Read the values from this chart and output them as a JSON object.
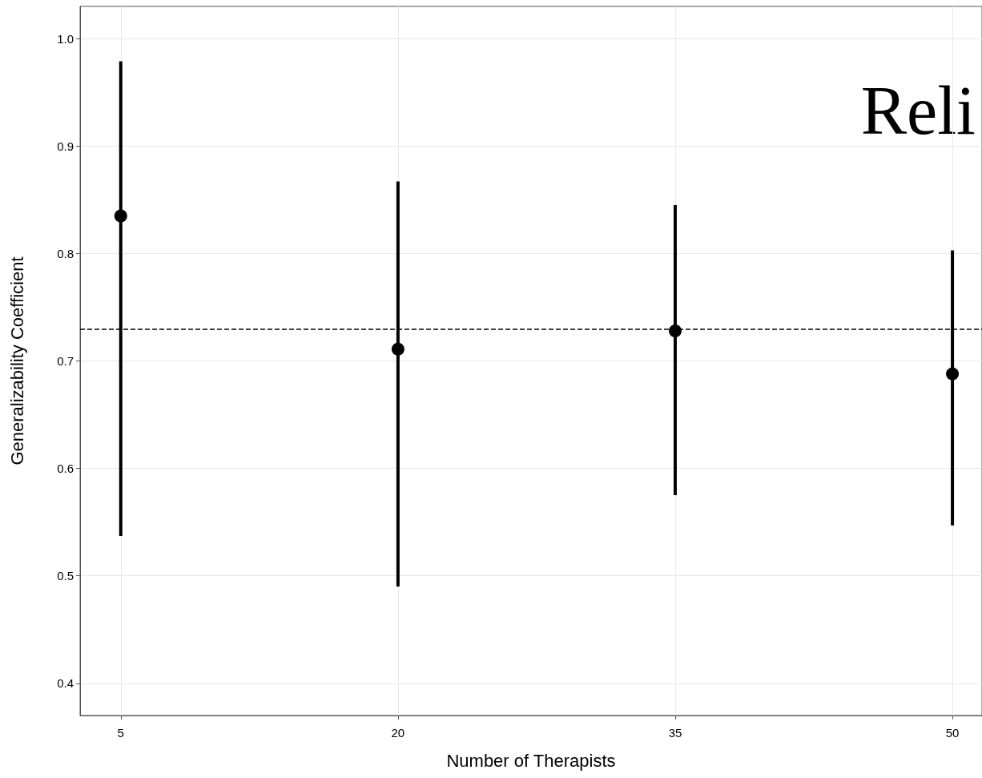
{
  "chart_data": {
    "type": "scatter",
    "xlabel": "Number of Therapists",
    "ylabel": "Generalizability Coefficient",
    "x": [
      5,
      20,
      35,
      50
    ],
    "series": [
      {
        "color": "#000000",
        "values": [
          0.835,
          0.711,
          0.728,
          0.688
        ],
        "errors": [
          [
            0.537,
            0.979
          ],
          [
            0.49,
            0.867
          ],
          [
            0.575,
            0.845
          ],
          [
            0.547,
            0.803
          ]
        ]
      }
    ],
    "marker": "circle",
    "xlim": [
      2.8,
      51.6
    ],
    "xticks": [
      5,
      20,
      35,
      50
    ],
    "ylim": [
      0.37,
      1.03
    ],
    "yticks": [
      0.4,
      0.5,
      0.6,
      0.7,
      0.8,
      0.9,
      {
        "value": 1,
        "label": "1.0"
      }
    ],
    "ref_lines": [
      {
        "axis": "y",
        "value": 0.73,
        "color": "#000000",
        "line_style": "dashed"
      }
    ],
    "annotations": [
      "Reli"
    ],
    "grid": true
  }
}
